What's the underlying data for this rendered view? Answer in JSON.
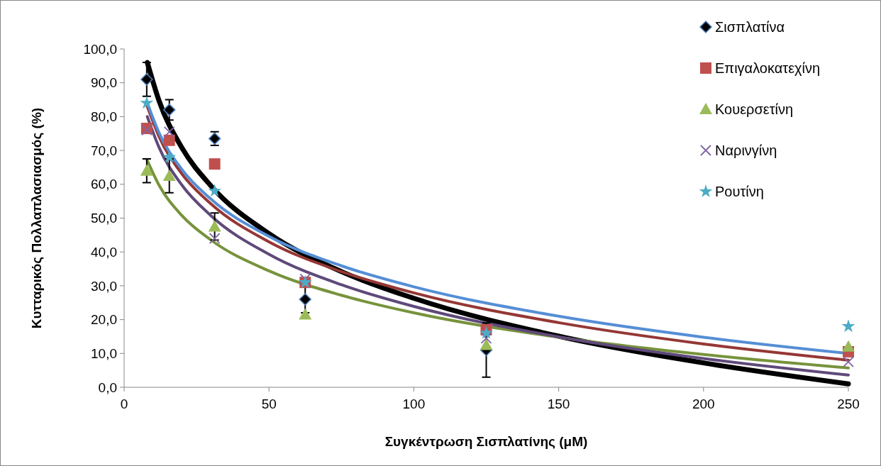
{
  "chart_data": {
    "type": "scatter",
    "xlabel": "Συγκέντρωση Σισπλατίνης (μM)",
    "ylabel": "Κυτταρικός Πολλαπλασιασμός (%)",
    "x": [
      7.8,
      15.6,
      31.25,
      62.5,
      125,
      250
    ],
    "xlim": [
      0,
      250
    ],
    "xticks": [
      0,
      50,
      100,
      150,
      200,
      250
    ],
    "ylim": [
      0,
      100
    ],
    "yticks": [
      {
        "value": 0,
        "label": "0,0"
      },
      {
        "value": 10,
        "label": "10,0"
      },
      {
        "value": 20,
        "label": "20,0"
      },
      {
        "value": 30,
        "label": "30,0"
      },
      {
        "value": 40,
        "label": "40,0"
      },
      {
        "value": 50,
        "label": "50,0"
      },
      {
        "value": 60,
        "label": "60,0"
      },
      {
        "value": 70,
        "label": "70,0"
      },
      {
        "value": 80,
        "label": "80,0"
      },
      {
        "value": 90,
        "label": "90,0"
      },
      {
        "value": 100,
        "label": "100,0"
      }
    ],
    "grid": false,
    "legend": "right",
    "series": [
      {
        "type": "line",
        "color": "#000000",
        "x": [
          8,
          12,
          20,
          30,
          50,
          75,
          100,
          150,
          200,
          250
        ],
        "values": [
          96,
          84.8,
          70.7,
          59.5,
          45.4,
          34.2,
          26.3,
          15.1,
          7.2,
          1.0
        ]
      },
      {
        "type": "line",
        "color": "#953735",
        "x": [
          8,
          12,
          20,
          30,
          50,
          75,
          100,
          150,
          200,
          250
        ],
        "values": [
          83,
          74.2,
          63.0,
          54.2,
          43.0,
          34.2,
          27.9,
          19.1,
          12.8,
          8.0
        ]
      },
      {
        "type": "line",
        "color": "#77933c",
        "x": [
          8,
          12,
          20,
          30,
          50,
          75,
          100,
          150,
          200,
          250
        ],
        "values": [
          67,
          59.8,
          50.7,
          43.5,
          34.4,
          27.2,
          22.0,
          14.8,
          9.7,
          5.7
        ]
      },
      {
        "type": "line",
        "color": "#5f497a",
        "x": [
          8,
          12,
          20,
          30,
          50,
          75,
          100,
          150,
          200,
          250
        ],
        "values": [
          80,
          71.0,
          59.7,
          50.7,
          39.3,
          30.3,
          23.9,
          14.9,
          8.5,
          3.6
        ]
      },
      {
        "type": "line",
        "color": "#558ed5",
        "x": [
          8,
          12,
          20,
          30,
          50,
          75,
          100,
          150,
          200,
          250
        ],
        "values": [
          84,
          75.3,
          64.3,
          55.6,
          44.6,
          35.9,
          29.7,
          21.0,
          14.8,
          10.0
        ]
      },
      {
        "name": "Σισπλατίνα",
        "marker": "diamond",
        "color": "#000000",
        "values": [
          91,
          82,
          73.5,
          26,
          11,
          null
        ],
        "errors": [
          5,
          3,
          2,
          4,
          8,
          null
        ]
      },
      {
        "name": "Επιγαλοκατεχίνη",
        "marker": "square",
        "color": "#c0504d",
        "values": [
          76.5,
          73,
          66,
          31,
          17,
          10.5
        ]
      },
      {
        "name": "Κουερσετίνη",
        "marker": "triangle",
        "color": "#9bbb59",
        "values": [
          64,
          62.5,
          47.5,
          21.5,
          12.5,
          12
        ],
        "errors": [
          3.5,
          5,
          4,
          null,
          null,
          null
        ]
      },
      {
        "name": "Ναρινγίνη",
        "marker": "cross",
        "color": "#8064a2",
        "values": [
          76,
          75.5,
          44,
          32,
          14.5,
          7.5
        ]
      },
      {
        "name": "Ρουτίνη",
        "marker": "star",
        "color": "#4bacc6",
        "values": [
          84,
          68,
          58,
          31,
          16,
          18
        ]
      }
    ]
  }
}
